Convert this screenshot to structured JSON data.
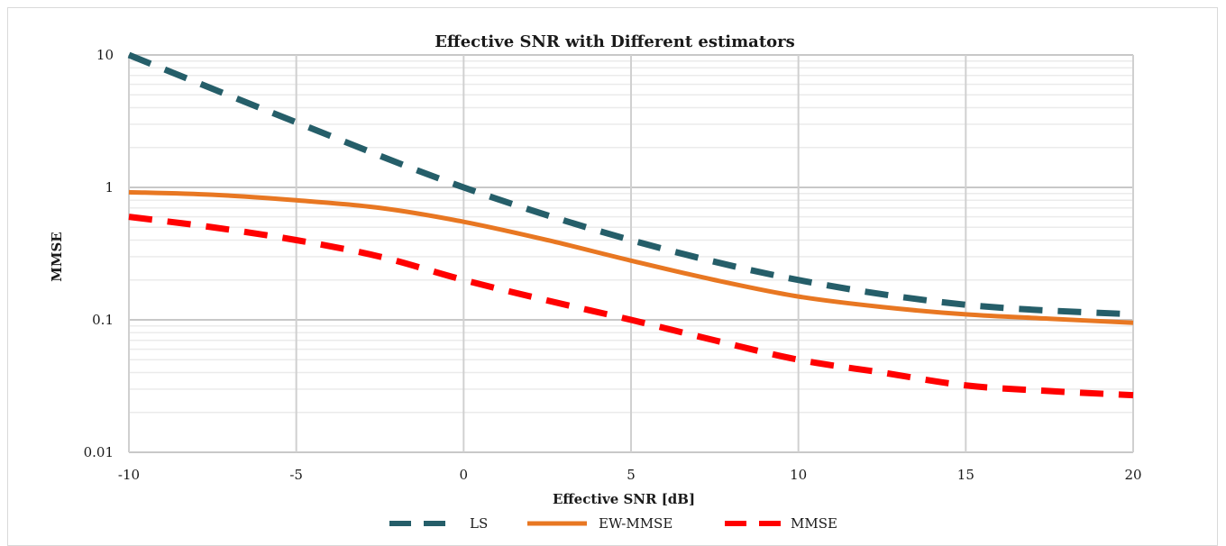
{
  "chart_data": {
    "type": "line",
    "title": "Effective SNR with Different estimators",
    "xlabel": "Effective SNR [dB]",
    "ylabel": "MMSE",
    "xlim": [
      -10,
      20
    ],
    "ylim": [
      0.01,
      10
    ],
    "yscale": "log",
    "x_ticks": [
      "-10",
      "-5",
      "0",
      "5",
      "10",
      "15",
      "20"
    ],
    "y_ticks": [
      "0.01",
      "0.1",
      "1",
      "10"
    ],
    "grid": true,
    "legend_position": "bottom",
    "series": [
      {
        "name": "LS",
        "color": "#255e69",
        "style": "dashed",
        "x": [
          -10,
          -5,
          0,
          5,
          10,
          15,
          20
        ],
        "values": [
          10,
          3.1,
          1.0,
          0.4,
          0.2,
          0.13,
          0.11
        ]
      },
      {
        "name": "EW-MMSE",
        "color": "#e87722",
        "style": "solid",
        "x": [
          -10,
          -7.5,
          -5,
          -2.5,
          0,
          2.5,
          5,
          7.5,
          10,
          12.5,
          15,
          17.5,
          20
        ],
        "values": [
          0.92,
          0.88,
          0.8,
          0.7,
          0.55,
          0.4,
          0.28,
          0.2,
          0.15,
          0.125,
          0.11,
          0.102,
          0.095
        ]
      },
      {
        "name": "MMSE",
        "color": "#ff0000",
        "style": "dashed",
        "x": [
          -10,
          -7.5,
          -5,
          -2.5,
          0,
          2.5,
          5,
          7.5,
          10,
          12.5,
          15,
          17.5,
          20
        ],
        "values": [
          0.6,
          0.5,
          0.4,
          0.3,
          0.2,
          0.14,
          0.1,
          0.07,
          0.05,
          0.04,
          0.032,
          0.029,
          0.027
        ]
      }
    ]
  }
}
